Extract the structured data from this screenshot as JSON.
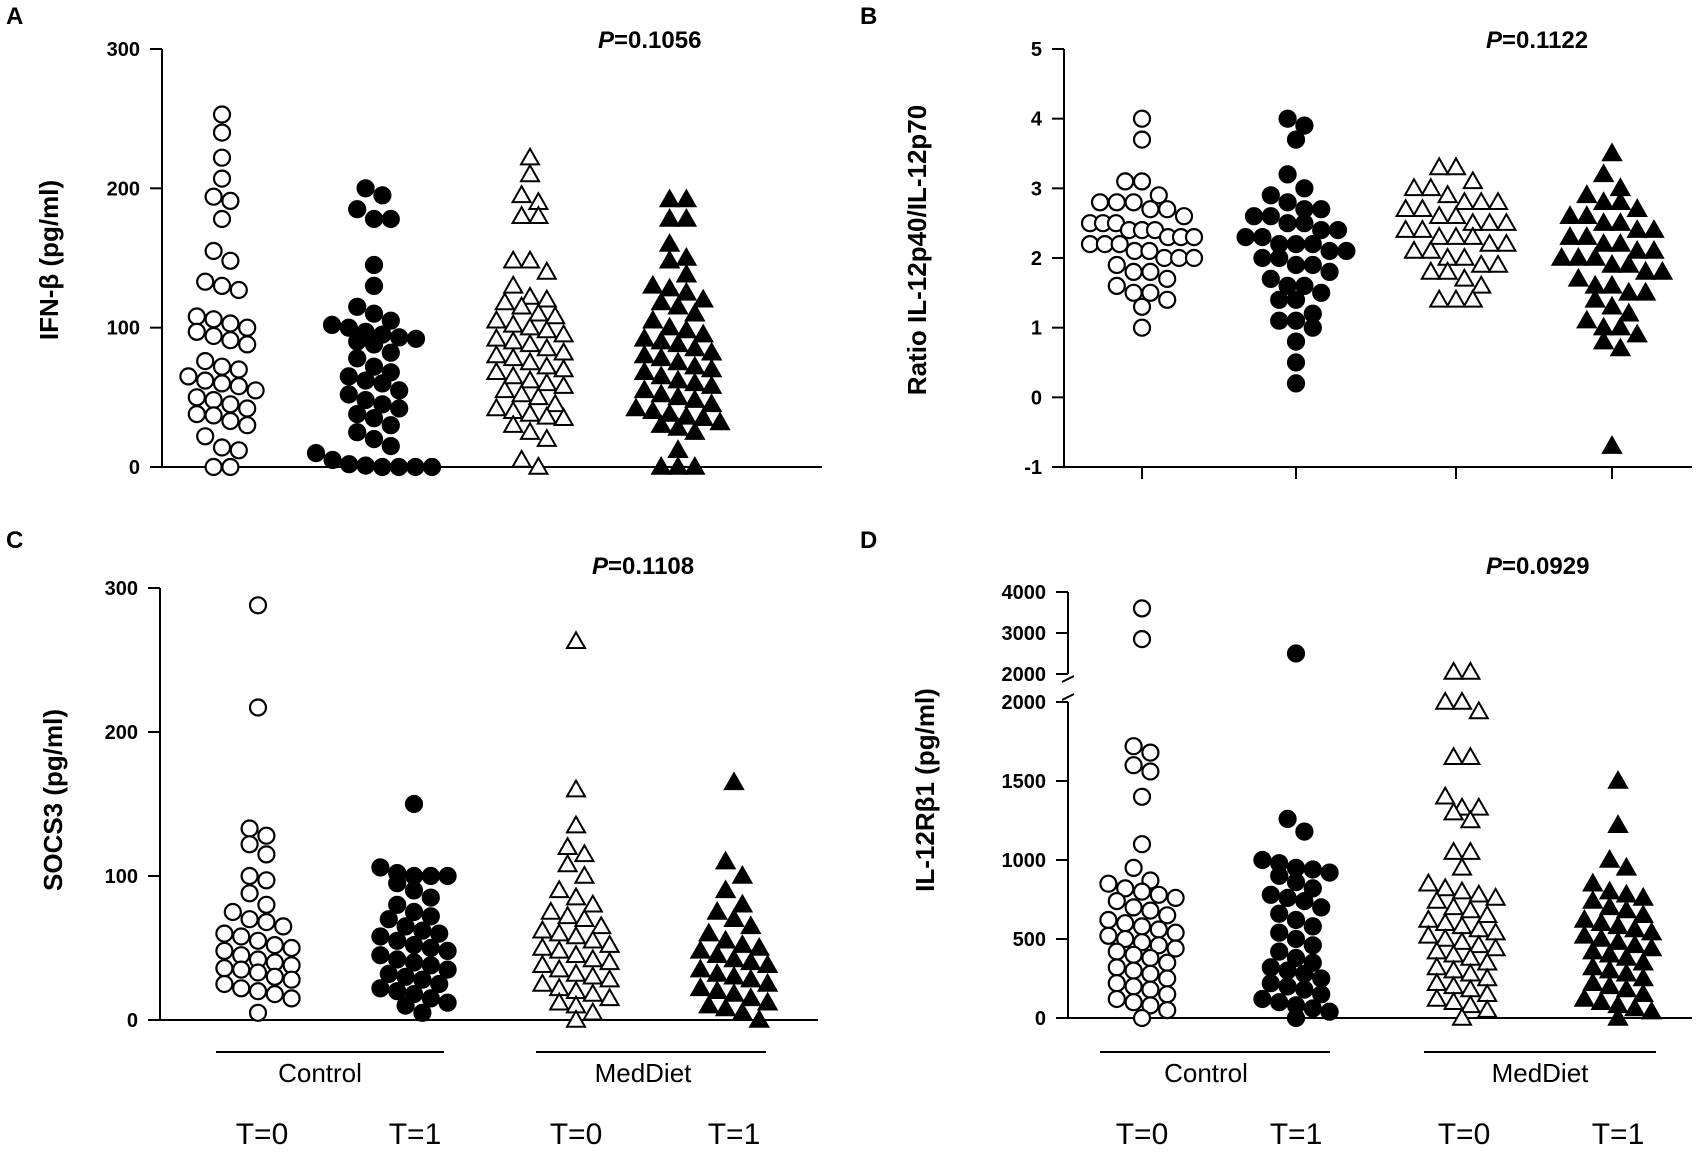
{
  "colors": {
    "ink": "#000000",
    "background": "#ffffff"
  },
  "markers": [
    "open-circle",
    "filled-circle",
    "open-triangle",
    "filled-triangle"
  ],
  "groups": [
    "Control",
    "MedDiet"
  ],
  "times": [
    "T=0",
    "T=1",
    "T=0",
    "T=1"
  ],
  "chart_data": [
    {
      "panel": "A",
      "type": "scatter",
      "ylabel": "IFN-β (pg/ml)",
      "p_label": "P",
      "p_value": "=0.1056",
      "ylim": [
        0,
        300
      ],
      "yticks": [
        "0",
        "100",
        "200",
        "300"
      ],
      "series": [
        {
          "name": "Control T=0",
          "marker": "open-circle",
          "values": [
            253,
            240,
            222,
            207,
            194,
            191,
            178,
            155,
            148,
            133,
            130,
            127,
            108,
            106,
            103,
            100,
            97,
            94,
            91,
            88,
            76,
            72,
            70,
            65,
            62,
            60,
            58,
            55,
            50,
            48,
            45,
            42,
            38,
            37,
            33,
            30,
            22,
            14,
            12,
            0,
            0
          ]
        },
        {
          "name": "Control T=1",
          "marker": "filled-circle",
          "values": [
            200,
            195,
            185,
            178,
            178,
            145,
            130,
            115,
            110,
            105,
            102,
            100,
            97,
            95,
            93,
            92,
            90,
            88,
            82,
            78,
            72,
            68,
            65,
            62,
            60,
            55,
            52,
            48,
            45,
            42,
            38,
            35,
            30,
            25,
            20,
            15,
            10,
            5,
            2,
            1,
            0,
            0,
            0,
            0
          ]
        },
        {
          "name": "MedDiet T=0",
          "marker": "open-triangle",
          "values": [
            222,
            210,
            195,
            190,
            180,
            180,
            148,
            148,
            140,
            130,
            122,
            120,
            118,
            115,
            110,
            108,
            105,
            102,
            100,
            98,
            95,
            92,
            90,
            88,
            85,
            82,
            80,
            78,
            75,
            72,
            70,
            68,
            65,
            62,
            60,
            58,
            55,
            52,
            50,
            45,
            42,
            40,
            38,
            36,
            35,
            30,
            25,
            20,
            5,
            0
          ]
        },
        {
          "name": "MedDiet T=1",
          "marker": "filled-triangle",
          "values": [
            192,
            192,
            178,
            178,
            160,
            150,
            148,
            138,
            130,
            128,
            125,
            120,
            118,
            115,
            110,
            105,
            100,
            98,
            95,
            92,
            90,
            88,
            85,
            82,
            80,
            78,
            75,
            72,
            70,
            68,
            65,
            62,
            60,
            58,
            55,
            52,
            50,
            48,
            45,
            42,
            40,
            38,
            36,
            35,
            32,
            30,
            28,
            25,
            12,
            0,
            0,
            0
          ]
        }
      ]
    },
    {
      "panel": "B",
      "type": "scatter",
      "ylabel": "Ratio IL-12p40/IL-12p70",
      "p_label": "P",
      "p_value": "=0.1122",
      "ylim": [
        -1,
        5
      ],
      "yticks": [
        "-1",
        "0",
        "1",
        "2",
        "3",
        "4",
        "5"
      ],
      "series": [
        {
          "name": "Control T=0",
          "marker": "open-circle",
          "values": [
            4.0,
            3.7,
            3.1,
            3.1,
            2.9,
            2.8,
            2.8,
            2.8,
            2.7,
            2.7,
            2.6,
            2.5,
            2.5,
            2.5,
            2.4,
            2.4,
            2.4,
            2.3,
            2.3,
            2.3,
            2.2,
            2.2,
            2.2,
            2.1,
            2.1,
            2.0,
            2.0,
            2.0,
            1.9,
            1.8,
            1.8,
            1.7,
            1.6,
            1.5,
            1.5,
            1.4,
            1.3,
            1.0
          ]
        },
        {
          "name": "Control T=1",
          "marker": "filled-circle",
          "values": [
            4.0,
            3.9,
            3.7,
            3.2,
            3.0,
            2.9,
            2.8,
            2.7,
            2.7,
            2.6,
            2.6,
            2.5,
            2.5,
            2.4,
            2.4,
            2.3,
            2.3,
            2.2,
            2.2,
            2.2,
            2.1,
            2.1,
            2.0,
            2.0,
            1.9,
            1.9,
            1.8,
            1.7,
            1.6,
            1.6,
            1.5,
            1.4,
            1.4,
            1.2,
            1.1,
            1.1,
            1.0,
            0.8,
            0.5,
            0.2
          ]
        },
        {
          "name": "MedDiet T=0",
          "marker": "open-triangle",
          "values": [
            3.3,
            3.3,
            3.1,
            3.0,
            3.0,
            2.9,
            2.8,
            2.8,
            2.8,
            2.7,
            2.7,
            2.6,
            2.6,
            2.5,
            2.5,
            2.5,
            2.4,
            2.4,
            2.3,
            2.3,
            2.3,
            2.2,
            2.2,
            2.1,
            2.1,
            2.0,
            2.0,
            1.9,
            1.9,
            1.8,
            1.8,
            1.7,
            1.6,
            1.4,
            1.4,
            1.4
          ]
        },
        {
          "name": "MedDiet T=1",
          "marker": "filled-triangle",
          "values": [
            3.5,
            3.2,
            3.0,
            2.9,
            2.8,
            2.8,
            2.7,
            2.6,
            2.6,
            2.5,
            2.5,
            2.4,
            2.4,
            2.3,
            2.3,
            2.2,
            2.2,
            2.1,
            2.1,
            2.0,
            2.0,
            2.0,
            1.9,
            1.9,
            1.8,
            1.8,
            1.7,
            1.6,
            1.6,
            1.5,
            1.5,
            1.4,
            1.3,
            1.2,
            1.1,
            1.0,
            1.0,
            0.9,
            0.8,
            0.7,
            -0.7
          ]
        }
      ]
    },
    {
      "panel": "C",
      "type": "scatter",
      "ylabel": "SOCS3 (pg/ml)",
      "p_label": "P",
      "p_value": "=0.1108",
      "ylim": [
        0,
        300
      ],
      "yticks": [
        "0",
        "100",
        "200",
        "300"
      ],
      "series": [
        {
          "name": "Control T=0",
          "marker": "open-circle",
          "values": [
            288,
            217,
            133,
            128,
            122,
            115,
            100,
            97,
            88,
            80,
            75,
            70,
            68,
            65,
            60,
            58,
            55,
            52,
            50,
            48,
            45,
            42,
            40,
            38,
            36,
            35,
            33,
            30,
            28,
            25,
            22,
            20,
            18,
            15,
            5
          ]
        },
        {
          "name": "Control T=1",
          "marker": "filled-circle",
          "values": [
            150,
            106,
            102,
            100,
            100,
            100,
            95,
            90,
            85,
            80,
            75,
            72,
            70,
            65,
            62,
            60,
            58,
            55,
            52,
            50,
            48,
            45,
            42,
            40,
            38,
            35,
            32,
            30,
            28,
            25,
            22,
            20,
            18,
            15,
            12,
            10,
            5
          ]
        },
        {
          "name": "MedDiet T=0",
          "marker": "open-triangle",
          "values": [
            263,
            160,
            135,
            120,
            115,
            108,
            100,
            90,
            85,
            80,
            75,
            72,
            70,
            65,
            62,
            60,
            58,
            55,
            52,
            50,
            48,
            45,
            42,
            40,
            38,
            35,
            32,
            30,
            28,
            25,
            22,
            20,
            18,
            15,
            12,
            10,
            5,
            0
          ]
        },
        {
          "name": "MedDiet T=1",
          "marker": "filled-triangle",
          "values": [
            165,
            110,
            100,
            90,
            80,
            75,
            70,
            65,
            60,
            55,
            52,
            50,
            48,
            45,
            42,
            40,
            38,
            35,
            32,
            30,
            28,
            25,
            22,
            20,
            18,
            15,
            12,
            10,
            8,
            5,
            0
          ]
        }
      ]
    },
    {
      "panel": "D",
      "type": "scatter",
      "ylabel": "IL-12Rβ1 (pg/ml)",
      "p_label": "P",
      "p_value": "=0.0929",
      "ylim": [
        0,
        4000
      ],
      "axis_break": [
        2000,
        2000
      ],
      "yticks_lower": [
        "0",
        "500",
        "1000",
        "1500",
        "2000"
      ],
      "yticks_upper": [
        "2000",
        "3000",
        "4000"
      ],
      "series": [
        {
          "name": "Control T=0",
          "marker": "open-circle",
          "values": [
            3600,
            2850,
            1720,
            1680,
            1600,
            1560,
            1400,
            1100,
            950,
            870,
            850,
            820,
            800,
            780,
            760,
            740,
            700,
            680,
            650,
            620,
            600,
            580,
            560,
            540,
            520,
            500,
            480,
            460,
            440,
            420,
            400,
            380,
            350,
            320,
            300,
            280,
            250,
            220,
            200,
            180,
            150,
            120,
            100,
            80,
            50,
            0
          ]
        },
        {
          "name": "Control T=1",
          "marker": "filled-circle",
          "values": [
            2500,
            1260,
            1180,
            1000,
            980,
            950,
            940,
            920,
            900,
            860,
            820,
            780,
            760,
            740,
            700,
            660,
            620,
            580,
            540,
            500,
            460,
            420,
            380,
            350,
            320,
            300,
            280,
            250,
            220,
            200,
            180,
            150,
            120,
            100,
            80,
            60,
            40,
            0
          ]
        },
        {
          "name": "MedDiet T=0",
          "marker": "open-triangle",
          "values": [
            2050,
            2050,
            2000,
            2000,
            1940,
            1650,
            1650,
            1400,
            1330,
            1330,
            1300,
            1250,
            1050,
            1050,
            950,
            850,
            820,
            800,
            780,
            760,
            740,
            700,
            680,
            650,
            620,
            600,
            580,
            560,
            540,
            520,
            500,
            480,
            460,
            440,
            420,
            400,
            380,
            350,
            320,
            300,
            280,
            250,
            220,
            200,
            180,
            150,
            120,
            100,
            80,
            50,
            0
          ]
        },
        {
          "name": "MedDiet T=1",
          "marker": "filled-triangle",
          "values": [
            1500,
            1220,
            1000,
            950,
            850,
            800,
            780,
            760,
            740,
            700,
            680,
            650,
            620,
            600,
            580,
            560,
            540,
            520,
            500,
            480,
            460,
            440,
            420,
            400,
            380,
            350,
            320,
            300,
            280,
            250,
            220,
            200,
            180,
            150,
            120,
            100,
            80,
            60,
            40,
            0
          ]
        }
      ]
    }
  ]
}
